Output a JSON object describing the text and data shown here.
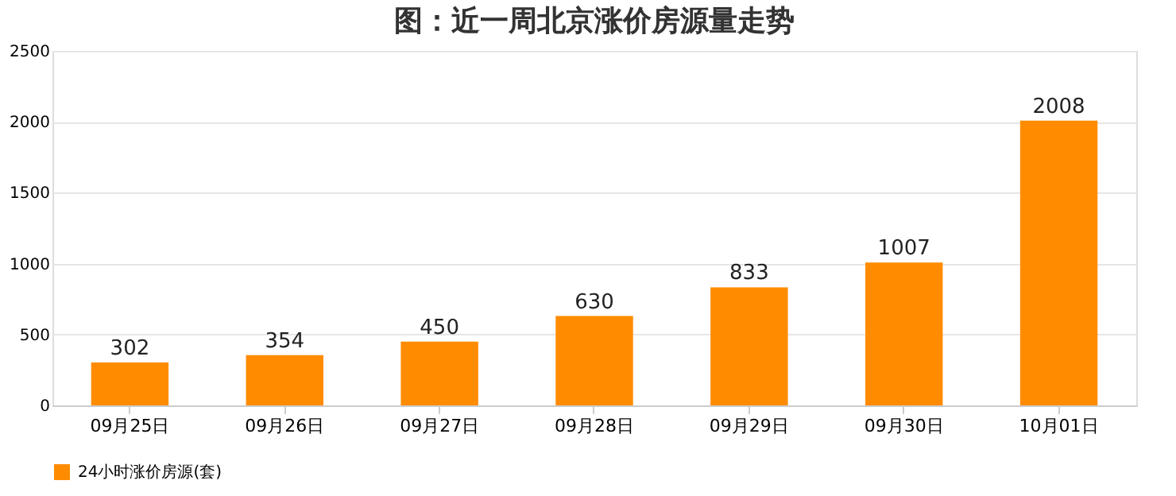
{
  "chart_data": {
    "type": "bar",
    "title": "图：近一周北京涨价房源量走势",
    "categories": [
      "09月25日",
      "09月26日",
      "09月27日",
      "09月28日",
      "09月29日",
      "09月30日",
      "10月01日"
    ],
    "series": [
      {
        "name": "24小时涨价房源(套)",
        "color": "#ff8c00",
        "values": [
          302,
          354,
          450,
          630,
          833,
          1007,
          2008
        ]
      }
    ],
    "ylim": [
      0,
      2500
    ],
    "yticks": [
      0,
      500,
      1000,
      1500,
      2000,
      2500
    ],
    "grid": "y",
    "legend": "bottom",
    "data_labels": true
  }
}
